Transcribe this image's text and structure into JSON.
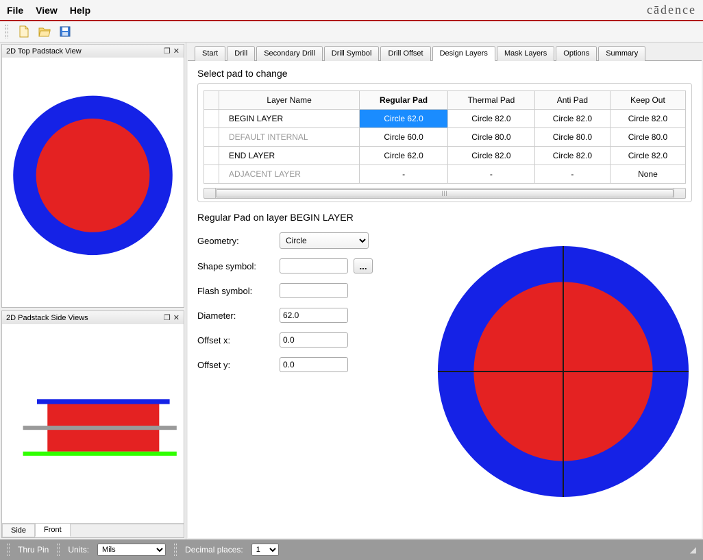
{
  "menu": {
    "file": "File",
    "view": "View",
    "help": "Help"
  },
  "logo": "cādence",
  "panels": {
    "top_view": {
      "title": "2D Top Padstack View"
    },
    "side_view": {
      "title": "2D Padstack Side Views",
      "tabs": {
        "side": "Side",
        "front": "Front"
      }
    }
  },
  "tabs": {
    "start": "Start",
    "drill": "Drill",
    "secondary_drill": "Secondary Drill",
    "drill_symbol": "Drill Symbol",
    "drill_offset": "Drill Offset",
    "design_layers": "Design Layers",
    "mask_layers": "Mask Layers",
    "options": "Options",
    "summary": "Summary"
  },
  "section_title": "Select pad to change",
  "table": {
    "headers": {
      "layer": "Layer Name",
      "regular": "Regular Pad",
      "thermal": "Thermal Pad",
      "anti": "Anti Pad",
      "keepout": "Keep Out"
    },
    "rows": [
      {
        "name": "BEGIN LAYER",
        "gray": false,
        "regular": "Circle 62.0",
        "thermal": "Circle 82.0",
        "anti": "Circle 82.0",
        "keepout": "Circle 82.0",
        "regular_selected": true
      },
      {
        "name": "DEFAULT INTERNAL",
        "gray": true,
        "regular": "Circle 60.0",
        "thermal": "Circle 80.0",
        "anti": "Circle 80.0",
        "keepout": "Circle 80.0"
      },
      {
        "name": "END LAYER",
        "gray": false,
        "regular": "Circle 62.0",
        "thermal": "Circle 82.0",
        "anti": "Circle 82.0",
        "keepout": "Circle 82.0"
      },
      {
        "name": "ADJACENT LAYER",
        "gray": true,
        "regular": "-",
        "thermal": "-",
        "anti": "-",
        "keepout": "None"
      }
    ]
  },
  "form": {
    "title": "Regular Pad on layer BEGIN LAYER",
    "labels": {
      "geometry": "Geometry:",
      "shape": "Shape symbol:",
      "flash": "Flash symbol:",
      "diameter": "Diameter:",
      "offx": "Offset x:",
      "offy": "Offset y:"
    },
    "values": {
      "geometry": "Circle",
      "shape": "",
      "flash": "",
      "diameter": "62.0",
      "offx": "0.0",
      "offy": "0.0"
    },
    "browse": "..."
  },
  "status": {
    "thru_pin": "Thru Pin",
    "units_label": "Units:",
    "units_value": "Mils",
    "decimal_label": "Decimal places:",
    "decimal_value": "1"
  },
  "colors": {
    "outer_ring": "#1522e6",
    "inner_circle": "#e42222",
    "cross": "#1a1a1a",
    "side_top_line": "#1522e6",
    "side_body": "#e42222",
    "side_mid_line": "#9a9a9a",
    "side_bottom_line": "#31ff00"
  }
}
